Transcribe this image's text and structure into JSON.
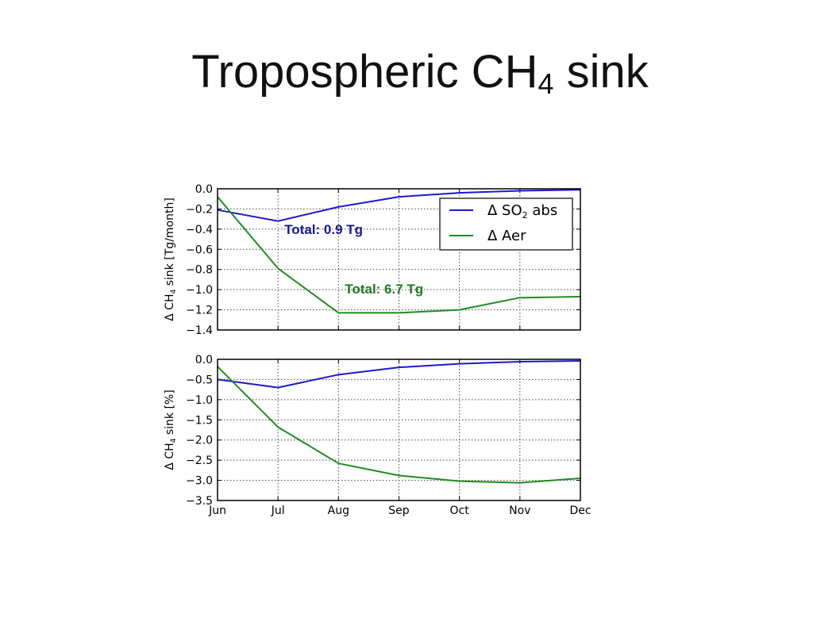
{
  "slide": {
    "title_main": "Tropospheric CH",
    "title_sub": "4",
    "title_end": " sink"
  },
  "legend": {
    "entries": [
      {
        "label_prefix": "Δ SO",
        "label_sub": "2",
        "label_suffix": " abs",
        "color": "#1a1acc"
      },
      {
        "label": "Δ Aer",
        "color": "#228b22"
      }
    ]
  },
  "annotations": [
    {
      "text": "Total: 0.9 Tg",
      "color": "#1a1a8c",
      "x": "Jul",
      "y": -0.45
    },
    {
      "text": "Total: 6.7 Tg",
      "color": "#1f7a1f",
      "x": "Aug",
      "y": -1.04
    }
  ],
  "chart_data": [
    {
      "type": "line",
      "categories": [
        "Jun",
        "Jul",
        "Aug",
        "Sep",
        "Oct",
        "Nov",
        "Dec"
      ],
      "ylabel_prefix": "Δ CH",
      "ylabel_sub": "4",
      "ylabel_suffix": " sink [Tg/month]",
      "ylim": [
        -1.4,
        0.0
      ],
      "yticks": [
        0.0,
        -0.2,
        -0.4,
        -0.6,
        -0.8,
        -1.0,
        -1.2,
        -1.4
      ],
      "ytick_labels": [
        "0.0",
        "−0.2",
        "−0.4",
        "−0.6",
        "−0.8",
        "−1.0",
        "−1.2",
        "−1.4"
      ],
      "grid": true,
      "legend_position": "top-right",
      "series": [
        {
          "name": "Δ SO2 abs",
          "color": "#1a1acc",
          "values": [
            -0.21,
            -0.32,
            -0.18,
            -0.08,
            -0.04,
            -0.02,
            -0.01
          ]
        },
        {
          "name": "Δ Aer",
          "color": "#228b22",
          "values": [
            -0.08,
            -0.79,
            -1.23,
            -1.23,
            -1.2,
            -1.08,
            -1.07
          ]
        }
      ]
    },
    {
      "type": "line",
      "categories": [
        "Jun",
        "Jul",
        "Aug",
        "Sep",
        "Oct",
        "Nov",
        "Dec"
      ],
      "ylabel_prefix": "Δ CH",
      "ylabel_sub": "4",
      "ylabel_suffix": " sink [%]",
      "ylim": [
        -3.5,
        0.0
      ],
      "yticks": [
        0.0,
        -0.5,
        -1.0,
        -1.5,
        -2.0,
        -2.5,
        -3.0,
        -3.5
      ],
      "ytick_labels": [
        "0.0",
        "−0.5",
        "−1.0",
        "−1.5",
        "−2.0",
        "−2.5",
        "−3.0",
        "−3.5"
      ],
      "grid": true,
      "series": [
        {
          "name": "Δ SO2 abs",
          "color": "#1a1acc",
          "values": [
            -0.5,
            -0.7,
            -0.38,
            -0.2,
            -0.11,
            -0.06,
            -0.04
          ]
        },
        {
          "name": "Δ Aer",
          "color": "#228b22",
          "values": [
            -0.18,
            -1.68,
            -2.58,
            -2.88,
            -3.02,
            -3.06,
            -2.95
          ]
        }
      ]
    }
  ]
}
